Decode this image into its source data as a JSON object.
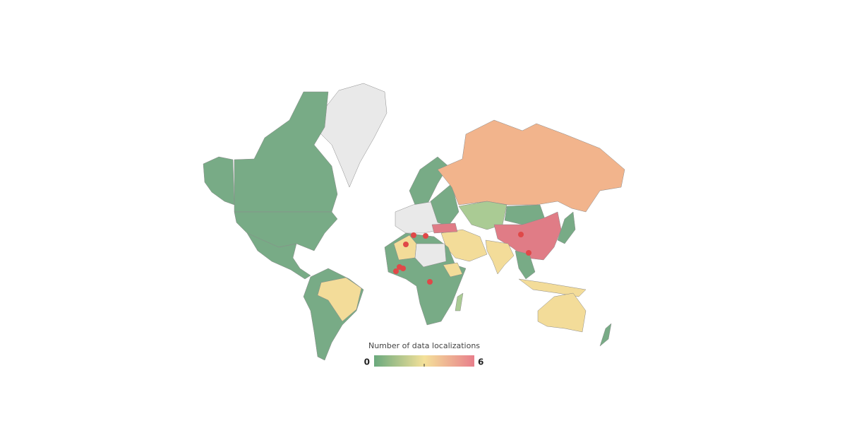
{
  "legend": {
    "title": "Number of data localizations",
    "min": 0,
    "max": 6,
    "colors": [
      "#6aa97d",
      "#f4e19a",
      "#e87f8b"
    ]
  }
}
